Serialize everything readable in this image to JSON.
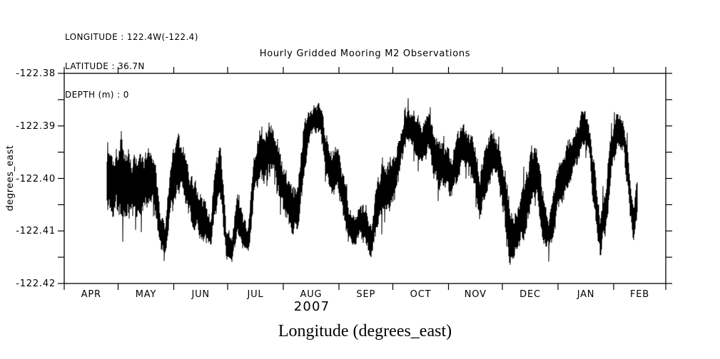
{
  "header": {
    "longitude_line": "LONGITUDE : 122.4W(-122.4)",
    "latitude_line": "LATITUDE : 36.7N",
    "depth_line": "DEPTH (m) : 0"
  },
  "chart_data": {
    "type": "line",
    "title": "Hourly Gridded Mooring M2 Observations",
    "variable_label": "Longitude (degrees_east)",
    "legend": "none",
    "grid": false,
    "x_axis": {
      "year": "2007",
      "tick_labels": [
        "APR",
        "MAY",
        "JUN",
        "JUL",
        "AUG",
        "SEP",
        "OCT",
        "NOV",
        "DEC",
        "JAN",
        "FEB"
      ],
      "month_boundaries_days": [
        0,
        30,
        61,
        91,
        122,
        153,
        183,
        214,
        244,
        275,
        306,
        335
      ],
      "total_days": 335
    },
    "y_axis": {
      "label": "degrees_east",
      "ticks": [
        -122.38,
        -122.39,
        -122.4,
        -122.41,
        -122.42
      ],
      "minor_ticks": [
        -122.385,
        -122.395,
        -122.405,
        -122.415
      ],
      "range": [
        -122.42,
        -122.38
      ]
    },
    "series": [
      {
        "name": "Longitude",
        "units": "degrees_east",
        "sampling": "hourly record downsampled to envelope triplets [day_since_Apr_1_2007, mean_value, half_range_of_oscillation]",
        "points": [
          [
            23.8,
            -122.4013,
            0.0068
          ],
          [
            27.8,
            -122.4006,
            0.0075
          ],
          [
            31.8,
            -122.3993,
            0.0095
          ],
          [
            35.8,
            -122.4006,
            0.0081
          ],
          [
            39.7,
            -122.402,
            0.0075
          ],
          [
            43.7,
            -122.4013,
            0.0068
          ],
          [
            47.7,
            -122.3993,
            0.0061
          ],
          [
            50.9,
            -122.4026,
            0.0068
          ],
          [
            54.0,
            -122.4108,
            0.0041
          ],
          [
            56.4,
            -122.4115,
            0.0034
          ],
          [
            59.6,
            -122.4006,
            0.0061
          ],
          [
            63.6,
            -122.3979,
            0.0068
          ],
          [
            66.8,
            -122.3993,
            0.0061
          ],
          [
            70.7,
            -122.404,
            0.0054
          ],
          [
            74.7,
            -122.406,
            0.0054
          ],
          [
            78.7,
            -122.4087,
            0.0047
          ],
          [
            81.5,
            -122.4108,
            0.0041
          ],
          [
            84.3,
            -122.4013,
            0.0068
          ],
          [
            87.4,
            -122.3993,
            0.0061
          ],
          [
            90.2,
            -122.4121,
            0.0041
          ],
          [
            93.4,
            -122.4135,
            0.003
          ],
          [
            96.6,
            -122.4067,
            0.0054
          ],
          [
            99.8,
            -122.4108,
            0.0041
          ],
          [
            102.5,
            -122.4121,
            0.0034
          ],
          [
            105.7,
            -122.3999,
            0.0068
          ],
          [
            108.5,
            -122.3952,
            0.0065
          ],
          [
            111.7,
            -122.3965,
            0.0061
          ],
          [
            114.8,
            -122.3938,
            0.0065
          ],
          [
            117.6,
            -122.3952,
            0.0061
          ],
          [
            120.8,
            -122.4006,
            0.0068
          ],
          [
            124.0,
            -122.404,
            0.0061
          ],
          [
            127.2,
            -122.406,
            0.0057
          ],
          [
            130.0,
            -122.4054,
            0.0061
          ],
          [
            133.1,
            -122.3952,
            0.0061
          ],
          [
            136.3,
            -122.3904,
            0.0043
          ],
          [
            139.5,
            -122.3884,
            0.0034
          ],
          [
            142.7,
            -122.3891,
            0.0038
          ],
          [
            145.9,
            -122.3952,
            0.0054
          ],
          [
            149.0,
            -122.3993,
            0.0054
          ],
          [
            152.2,
            -122.3986,
            0.0057
          ],
          [
            155.4,
            -122.4033,
            0.0057
          ],
          [
            158.6,
            -122.4087,
            0.0052
          ],
          [
            161.7,
            -122.4108,
            0.0041
          ],
          [
            164.9,
            -122.4074,
            0.0052
          ],
          [
            168.1,
            -122.4101,
            0.0043
          ],
          [
            171.3,
            -122.4115,
            0.0041
          ],
          [
            174.5,
            -122.4047,
            0.0057
          ],
          [
            177.6,
            -122.4013,
            0.0065
          ],
          [
            180.8,
            -122.402,
            0.0065
          ],
          [
            184.0,
            -122.3993,
            0.0065
          ],
          [
            187.2,
            -122.3945,
            0.0057
          ],
          [
            190.4,
            -122.3904,
            0.0043
          ],
          [
            193.5,
            -122.3898,
            0.0043
          ],
          [
            196.7,
            -122.3918,
            0.0052
          ],
          [
            199.9,
            -122.3938,
            0.0061
          ],
          [
            203.1,
            -122.3911,
            0.0047
          ],
          [
            206.3,
            -122.3959,
            0.0057
          ],
          [
            209.4,
            -122.3972,
            0.0057
          ],
          [
            212.6,
            -122.3979,
            0.0057
          ],
          [
            215.8,
            -122.3999,
            0.0057
          ],
          [
            219.0,
            -122.3965,
            0.0057
          ],
          [
            222.2,
            -122.3938,
            0.0052
          ],
          [
            225.3,
            -122.3952,
            0.0052
          ],
          [
            228.5,
            -122.3979,
            0.0057
          ],
          [
            231.7,
            -122.4033,
            0.0061
          ],
          [
            234.9,
            -122.3993,
            0.0065
          ],
          [
            238.1,
            -122.3952,
            0.0057
          ],
          [
            241.2,
            -122.3965,
            0.0057
          ],
          [
            244.4,
            -122.4006,
            0.008
          ],
          [
            247.6,
            -122.4094,
            0.0085
          ],
          [
            250.8,
            -122.4108,
            0.0061
          ],
          [
            254.0,
            -122.408,
            0.0057
          ],
          [
            257.1,
            -122.4047,
            0.0068
          ],
          [
            260.3,
            -122.3999,
            0.0068
          ],
          [
            263.5,
            -122.3993,
            0.0061
          ],
          [
            266.7,
            -122.4067,
            0.0061
          ],
          [
            269.9,
            -122.4108,
            0.0047
          ],
          [
            273.0,
            -122.4054,
            0.0057
          ],
          [
            276.2,
            -122.4006,
            0.0057
          ],
          [
            279.4,
            -122.3986,
            0.0057
          ],
          [
            282.6,
            -122.3959,
            0.0057
          ],
          [
            285.8,
            -122.3932,
            0.0052
          ],
          [
            288.9,
            -122.3904,
            0.0041
          ],
          [
            292.1,
            -122.3918,
            0.0052
          ],
          [
            295.3,
            -122.4026,
            0.0065
          ],
          [
            298.5,
            -122.4108,
            0.0052
          ],
          [
            301.7,
            -122.4054,
            0.0065
          ],
          [
            304.8,
            -122.3952,
            0.0057
          ],
          [
            308.0,
            -122.3904,
            0.0043
          ],
          [
            311.2,
            -122.3911,
            0.0047
          ],
          [
            314.4,
            -122.4006,
            0.0057
          ],
          [
            317.0,
            -122.409,
            0.0047
          ],
          [
            319.2,
            -122.4035,
            0.0045
          ]
        ]
      }
    ],
    "colors": {
      "line": "#000000",
      "background": "#ffffff"
    }
  }
}
